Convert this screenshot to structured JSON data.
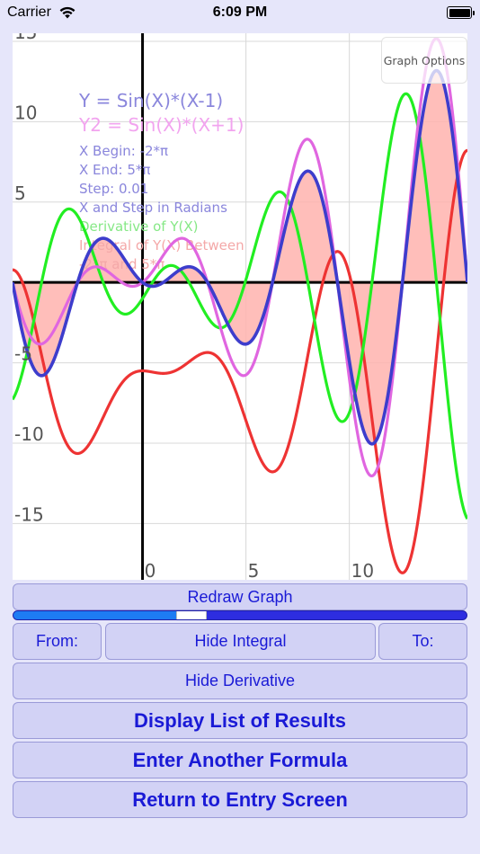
{
  "status_bar": {
    "carrier": "Carrier",
    "time": "6:09 PM"
  },
  "graph": {
    "options_label": "Graph Options",
    "info_lines": [
      {
        "text": "Y = Sin(X)*(X-1)",
        "color": "#8a86dc"
      },
      {
        "text": "Y2 = Sin(X)*(X+1)",
        "color": "#f2a4ef"
      },
      {
        "text": "X Begin: -2*π",
        "color": "#8a86dc"
      },
      {
        "text": "X End: 5*π",
        "color": "#8a86dc"
      },
      {
        "text": "Step: 0.01",
        "color": "#8a86dc"
      },
      {
        "text": "X and Step in Radians",
        "color": "#8a86dc"
      },
      {
        "text": "Derivative of Y(X)",
        "color": "#86e886"
      },
      {
        "text": "Integral of Y(X) Between",
        "color": "#f4a8a8"
      },
      {
        "text": "-2*π and 5*π",
        "color": "#f4a8a8"
      }
    ],
    "y_tick_labels": [
      "15",
      "10",
      "5",
      "-5",
      "-10",
      "-15"
    ],
    "x_tick_labels": [
      "0",
      "5",
      "10"
    ],
    "colors": {
      "y1": "#3d3dcc",
      "y2": "#e066e0",
      "derivative": "#22ee22",
      "integral": "#ee3333",
      "integral_fill": "#ffb3ae"
    }
  },
  "chart_data": {
    "type": "line",
    "title": "",
    "x_begin": -6.283,
    "x_end": 15.708,
    "xlim": [
      -6.283,
      15.708
    ],
    "ylim": [
      -18.5,
      15.5
    ],
    "x_ticks": [
      0,
      5,
      10
    ],
    "y_ticks": [
      15,
      10,
      5,
      -5,
      -10,
      -15
    ],
    "grid": true,
    "series": [
      {
        "name": "Y = Sin(X)*(X-1)",
        "formula": "sin(x)*(x-1)"
      },
      {
        "name": "Y2 = Sin(X)*(X+1)",
        "formula": "sin(x)*(x+1)"
      },
      {
        "name": "Derivative of Y(X)",
        "formula": "cos(x)*(x-1)+sin(x)"
      },
      {
        "name": "Integral of Y(X)",
        "formula": "sin(x)-(x-1)*cos(x)+C"
      }
    ],
    "shaded_region": {
      "between": "Y(X) and axis",
      "from": -6.283,
      "to": 15.708
    }
  },
  "controls": {
    "redraw": "Redraw Graph",
    "slider_value": 0.36,
    "from": "From:",
    "hide_integral": "Hide Integral",
    "to": "To:",
    "hide_derivative": "Hide Derivative",
    "display_list": "Display List of Results",
    "enter_another": "Enter Another Formula",
    "return_entry": "Return to Entry Screen"
  }
}
